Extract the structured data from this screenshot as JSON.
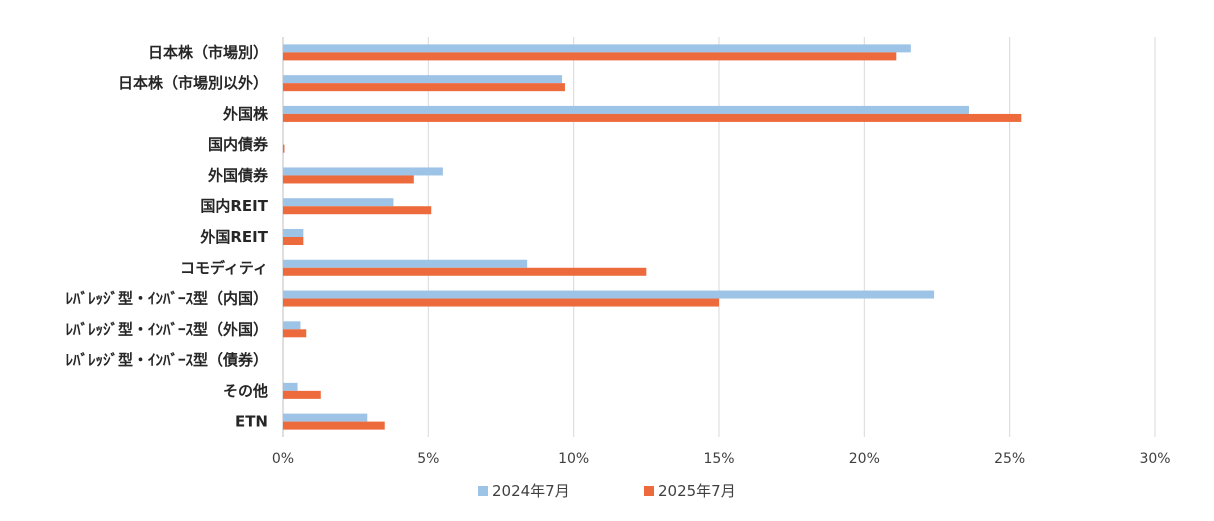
{
  "chart_data": {
    "type": "bar",
    "orientation": "horizontal",
    "categories": [
      "日本株（市場別）",
      "日本株（市場別以外）",
      "外国株",
      "国内債券",
      "外国債券",
      "国内REIT",
      "外国REIT",
      "コモディティ",
      "ﾚﾊﾞﾚｯｼﾞ型・ｲﾝﾊﾞｰｽ型（内国）",
      "ﾚﾊﾞﾚｯｼﾞ型・ｲﾝﾊﾞｰｽ型（外国）",
      "ﾚﾊﾞﾚｯｼﾞ型・ｲﾝﾊﾞｰｽ型（債券）",
      "その他",
      "ETN"
    ],
    "series": [
      {
        "name": "2024年7月",
        "color": "#9dc3e6",
        "values": [
          21.6,
          9.6,
          23.6,
          0.0,
          5.5,
          3.8,
          0.7,
          8.4,
          22.4,
          0.6,
          0.0,
          0.5,
          2.9
        ]
      },
      {
        "name": "2025年7月",
        "color": "#ed6a3c",
        "values": [
          21.1,
          9.7,
          25.4,
          0.05,
          4.5,
          5.1,
          0.7,
          12.5,
          15.0,
          0.8,
          0.0,
          1.3,
          3.5
        ]
      }
    ],
    "xlim": [
      0,
      30
    ],
    "xticks": [
      "0%",
      "5%",
      "10%",
      "15%",
      "20%",
      "25%",
      "30%"
    ],
    "grid": true,
    "legend": "bottom",
    "title": "",
    "xlabel": "",
    "ylabel": ""
  }
}
